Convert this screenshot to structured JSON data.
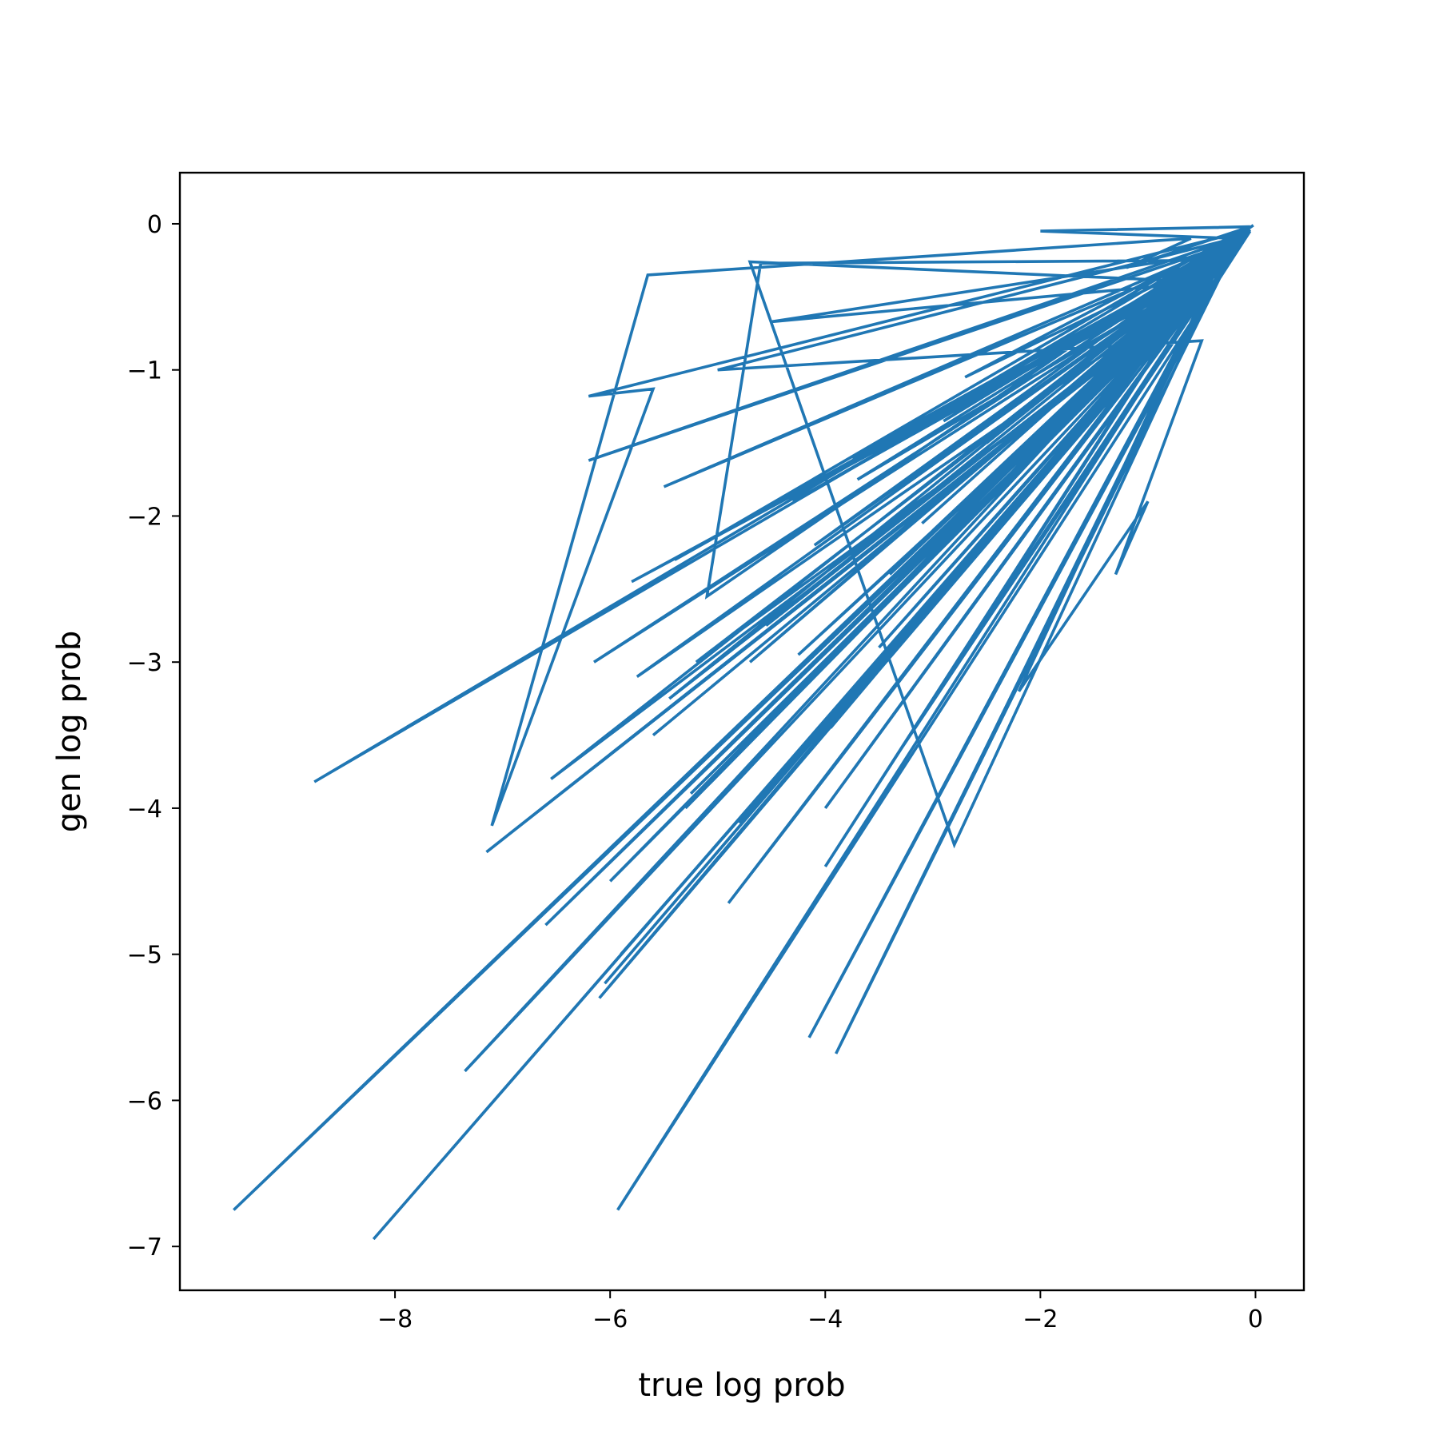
{
  "chart_data": {
    "type": "line",
    "title": "",
    "xlabel": "true log prob",
    "ylabel": "gen log prob",
    "xlim": [
      -10.0,
      0.45
    ],
    "ylim": [
      -7.3,
      0.35
    ],
    "xticks": [
      -8,
      -6,
      -4,
      -2,
      0
    ],
    "yticks": [
      0,
      -1,
      -2,
      -3,
      -4,
      -5,
      -6,
      -7
    ],
    "xtick_labels": [
      "−8",
      "−6",
      "−4",
      "−2",
      "0"
    ],
    "ytick_labels": [
      "0",
      "−1",
      "−2",
      "−3",
      "−4",
      "−5",
      "−6",
      "−7"
    ],
    "grid": false,
    "legend": false,
    "series": [
      {
        "color": "#2077b4",
        "x": [
          -0.02,
          -0.2,
          -2.0,
          -0.05,
          -1.2,
          -0.6,
          -5.65,
          -7.1,
          -5.6,
          -6.2,
          -0.1,
          -2.5,
          -0.15,
          -8.75,
          -0.2,
          -6.15,
          -0.3,
          -4.6,
          -5.1,
          -0.15,
          -5.4,
          -0.3,
          -7.35,
          -0.4,
          -9.5,
          -0.1,
          -8.2,
          -0.05,
          -5.93,
          -0.25,
          -2.8,
          -4.7,
          -0.4,
          -4.15,
          -0.15,
          -3.9,
          -0.2,
          -3.2,
          -0.3,
          -2.2,
          -1.0,
          -1.3,
          -0.5,
          -5.0,
          -0.2,
          -6.2,
          -0.3,
          -5.5,
          -0.35,
          -4.5,
          -0.5,
          -4.0,
          -0.6,
          -3.5,
          -0.7,
          -4.9,
          -0.4,
          -6.05,
          -0.35,
          -5.8,
          -0.3,
          -6.6,
          -0.45,
          -7.15,
          -0.5,
          -5.9,
          -0.6,
          -5.2,
          -0.25,
          -4.3,
          -0.3,
          -4.0,
          -0.15,
          -3.6,
          -0.2,
          -3.3,
          -0.1,
          -3.0,
          -0.12,
          -2.5,
          -0.08,
          -5.3,
          -0.2,
          -4.7,
          -0.18,
          -6.1,
          -0.4,
          -5.75,
          -0.25,
          -4.1,
          -0.15,
          -6.55,
          -0.5,
          -4.8,
          -0.3,
          -5.6,
          -0.35,
          -3.7,
          -0.2,
          -4.4,
          -0.28,
          -3.4,
          -0.14,
          -2.9,
          -0.05,
          -6.0,
          -0.45,
          -5.25,
          -0.38,
          -4.55,
          -0.22,
          -3.95,
          -0.12,
          -3.1,
          -0.18,
          -2.6,
          -0.1,
          -5.45,
          -0.4,
          -4.25,
          -0.32,
          -3.75,
          -0.2,
          -2.7,
          -0.06
        ],
        "y": [
          -0.01,
          -0.1,
          -0.05,
          -0.02,
          -0.3,
          -0.1,
          -0.35,
          -4.12,
          -1.13,
          -1.18,
          -0.05,
          -1.88,
          -0.07,
          -3.82,
          -0.15,
          -3.0,
          -0.25,
          -0.27,
          -2.55,
          -0.05,
          -2.3,
          -0.2,
          -5.8,
          -0.35,
          -6.75,
          -0.1,
          -6.95,
          -0.05,
          -6.75,
          -0.2,
          -4.25,
          -0.26,
          -0.4,
          -5.57,
          -0.1,
          -5.68,
          -0.12,
          -2.3,
          -0.2,
          -3.2,
          -1.9,
          -2.4,
          -0.8,
          -1.0,
          -0.1,
          -1.62,
          -0.15,
          -1.8,
          -0.2,
          -0.67,
          -0.4,
          -4.4,
          -0.5,
          -2.9,
          -0.6,
          -4.65,
          -0.35,
          -5.2,
          -0.3,
          -2.45,
          -0.25,
          -4.8,
          -0.4,
          -4.3,
          -0.45,
          -5.0,
          -0.55,
          -3.0,
          -0.2,
          -1.9,
          -0.25,
          -4.0,
          -0.12,
          -2.6,
          -0.15,
          -3.6,
          -0.08,
          -2.1,
          -0.1,
          -1.5,
          -0.06,
          -4.0,
          -0.18,
          -3.0,
          -0.14,
          -5.3,
          -0.38,
          -3.1,
          -0.2,
          -2.2,
          -0.1,
          -3.8,
          -0.45,
          -4.1,
          -0.27,
          -3.5,
          -0.3,
          -1.75,
          -0.15,
          -3.3,
          -0.22,
          -2.4,
          -0.11,
          -1.35,
          -0.04,
          -4.5,
          -0.4,
          -3.9,
          -0.34,
          -2.75,
          -0.18,
          -3.45,
          -0.09,
          -2.05,
          -0.13,
          -1.2,
          -0.07,
          -3.25,
          -0.36,
          -2.95,
          -0.28,
          -1.6,
          -0.16,
          -1.05,
          -0.03
        ]
      }
    ]
  }
}
